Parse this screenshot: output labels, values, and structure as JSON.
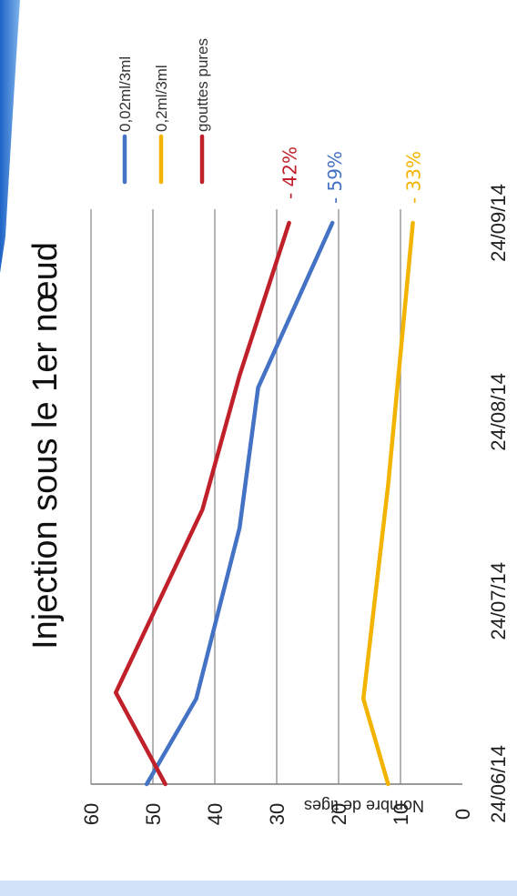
{
  "colors": {
    "slide_accent": "#1f63c6",
    "slide_accent_light": "#7fb4ec",
    "gridline": "#8c8c8c",
    "axis": "#7a7a7a"
  },
  "chart_data": {
    "type": "line",
    "title": "Injection sous le 1er nœud",
    "ylabel": "Nombre de tiges",
    "xlabel": "",
    "ylim": [
      0,
      60
    ],
    "yticks": [
      0,
      10,
      20,
      30,
      40,
      50,
      60
    ],
    "x_tick_labels": [
      "24/06/14",
      "24/07/14",
      "24/08/14",
      "24/09/14"
    ],
    "x_range": [
      "2014-06-24",
      "2014-09-24"
    ],
    "grid": true,
    "legend_position": "right",
    "series": [
      {
        "name": "0,02ml/3ml",
        "color": "#4472c4",
        "x": [
          "2014-06-24",
          "2014-07-08",
          "2014-08-05",
          "2014-08-28",
          "2014-09-24"
        ],
        "values": [
          51,
          43,
          36,
          33,
          21
        ],
        "change_label": "- 59%"
      },
      {
        "name": "0,2ml/3ml",
        "color": "#f2b400",
        "x": [
          "2014-06-24",
          "2014-07-08",
          "2014-08-12",
          "2014-09-24"
        ],
        "values": [
          12,
          16,
          12,
          8
        ],
        "change_label": "- 33%"
      },
      {
        "name": "gouttes pures",
        "color": "#c0202a",
        "x": [
          "2014-06-24",
          "2014-07-09",
          "2014-08-08",
          "2014-08-30",
          "2014-09-24"
        ],
        "values": [
          48,
          56,
          42,
          36,
          28
        ],
        "change_label": "- 42%"
      }
    ]
  }
}
